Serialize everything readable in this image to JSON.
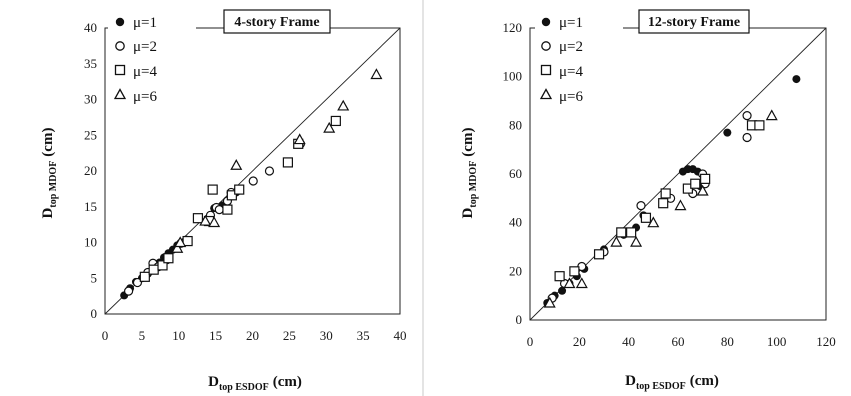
{
  "chart_data": [
    {
      "type": "scatter",
      "title": "4-story Frame",
      "xlabel": {
        "main": "D",
        "sub": "top ESDOF",
        "unit": "(cm)"
      },
      "ylabel": {
        "main": "D",
        "sub": "top MDOF",
        "unit": "(cm)"
      },
      "xlim": [
        0,
        40
      ],
      "ylim": [
        0,
        40
      ],
      "xticks": [
        "0",
        "5",
        "10",
        "15",
        "20",
        "25",
        "30",
        "35",
        "40"
      ],
      "yticks": [
        "0",
        "5",
        "10",
        "15",
        "20",
        "25",
        "30",
        "35",
        "40"
      ],
      "reference_line": "y = x",
      "grid": false,
      "legend_position": "top-left",
      "series": [
        {
          "name": "μ=1",
          "marker": "filled-circle",
          "points": [
            [
              2.6,
              2.6
            ],
            [
              3.4,
              3.6
            ],
            [
              4.2,
              4.5
            ],
            [
              5.0,
              5.0
            ],
            [
              5.8,
              5.6
            ],
            [
              6.6,
              6.4
            ],
            [
              7.4,
              7.2
            ],
            [
              8.0,
              7.9
            ],
            [
              8.6,
              8.5
            ],
            [
              9.2,
              9.0
            ],
            [
              9.8,
              9.6
            ],
            [
              11.0,
              10.4
            ],
            [
              14.8,
              14.8
            ],
            [
              15.9,
              15.2
            ],
            [
              17.0,
              16.4
            ],
            [
              17.8,
              17.0
            ],
            [
              18.2,
              17.3
            ]
          ]
        },
        {
          "name": "μ=2",
          "marker": "open-circle",
          "points": [
            [
              3.2,
              3.2
            ],
            [
              4.4,
              4.4
            ],
            [
              5.8,
              5.8
            ],
            [
              6.5,
              7.1
            ],
            [
              7.2,
              6.6
            ],
            [
              8.4,
              7.6
            ],
            [
              10.3,
              9.9
            ],
            [
              14.3,
              13.8
            ],
            [
              15.1,
              14.9
            ],
            [
              15.5,
              14.6
            ],
            [
              16.6,
              15.8
            ],
            [
              17.1,
              17.0
            ],
            [
              20.1,
              18.6
            ],
            [
              22.3,
              20.0
            ],
            [
              26.5,
              23.8
            ]
          ]
        },
        {
          "name": "μ=4",
          "marker": "open-square",
          "points": [
            [
              5.4,
              5.2
            ],
            [
              6.6,
              6.2
            ],
            [
              7.8,
              6.8
            ],
            [
              8.6,
              7.8
            ],
            [
              11.2,
              10.2
            ],
            [
              12.6,
              13.4
            ],
            [
              14.1,
              13.0
            ],
            [
              14.6,
              17.4
            ],
            [
              16.6,
              14.6
            ],
            [
              17.2,
              16.6
            ],
            [
              18.2,
              17.4
            ],
            [
              24.8,
              21.2
            ],
            [
              26.2,
              23.8
            ],
            [
              31.3,
              27.0
            ]
          ]
        },
        {
          "name": "μ=6",
          "marker": "open-triangle",
          "points": [
            [
              9.8,
              9.2
            ],
            [
              10.2,
              10.0
            ],
            [
              13.6,
              13.0
            ],
            [
              14.8,
              12.8
            ],
            [
              17.8,
              20.8
            ],
            [
              26.4,
              24.4
            ],
            [
              30.4,
              26.0
            ],
            [
              32.3,
              29.1
            ],
            [
              36.8,
              33.5
            ]
          ]
        }
      ]
    },
    {
      "type": "scatter",
      "title": "12-story Frame",
      "xlabel": {
        "main": "D",
        "sub": "top ESDOF",
        "unit": "(cm)"
      },
      "ylabel": {
        "main": "D",
        "sub": "top MDOF",
        "unit": "(cm)"
      },
      "xlim": [
        0,
        120
      ],
      "ylim": [
        0,
        120
      ],
      "xticks": [
        "0",
        "20",
        "40",
        "60",
        "80",
        "100",
        "120"
      ],
      "yticks": [
        "0",
        "20",
        "40",
        "60",
        "80",
        "100",
        "120"
      ],
      "reference_line": "y = x",
      "grid": false,
      "legend_position": "top-left",
      "series": [
        {
          "name": "μ=1",
          "marker": "filled-circle",
          "points": [
            [
              7,
              7
            ],
            [
              10,
              10
            ],
            [
              13,
              12
            ],
            [
              16,
              15
            ],
            [
              19,
              18
            ],
            [
              22,
              21
            ],
            [
              30,
              29
            ],
            [
              38,
              35
            ],
            [
              43,
              38
            ],
            [
              46,
              43
            ],
            [
              62,
              61
            ],
            [
              64,
              62
            ],
            [
              66,
              62
            ],
            [
              68,
              61
            ],
            [
              69,
              55
            ],
            [
              80,
              77
            ],
            [
              108,
              99
            ]
          ]
        },
        {
          "name": "μ=2",
          "marker": "open-circle",
          "points": [
            [
              9,
              9
            ],
            [
              14,
              15
            ],
            [
              21,
              22
            ],
            [
              30,
              28
            ],
            [
              38,
              36
            ],
            [
              45,
              47
            ],
            [
              57,
              50
            ],
            [
              66,
              52
            ],
            [
              70,
              60
            ],
            [
              71,
              56
            ],
            [
              88,
              75
            ],
            [
              88,
              84
            ]
          ]
        },
        {
          "name": "μ=4",
          "marker": "open-square",
          "points": [
            [
              12,
              18
            ],
            [
              18,
              20
            ],
            [
              28,
              27
            ],
            [
              37,
              36
            ],
            [
              41,
              36
            ],
            [
              47,
              42
            ],
            [
              54,
              48
            ],
            [
              55,
              52
            ],
            [
              64,
              54
            ],
            [
              67,
              56
            ],
            [
              71,
              58
            ],
            [
              90,
              80
            ],
            [
              93,
              80
            ]
          ]
        },
        {
          "name": "μ=6",
          "marker": "open-triangle",
          "points": [
            [
              8,
              7
            ],
            [
              16,
              15
            ],
            [
              21,
              15
            ],
            [
              35,
              32
            ],
            [
              43,
              32
            ],
            [
              50,
              40
            ],
            [
              61,
              47
            ],
            [
              70,
              53
            ],
            [
              98,
              84
            ]
          ]
        }
      ]
    }
  ]
}
